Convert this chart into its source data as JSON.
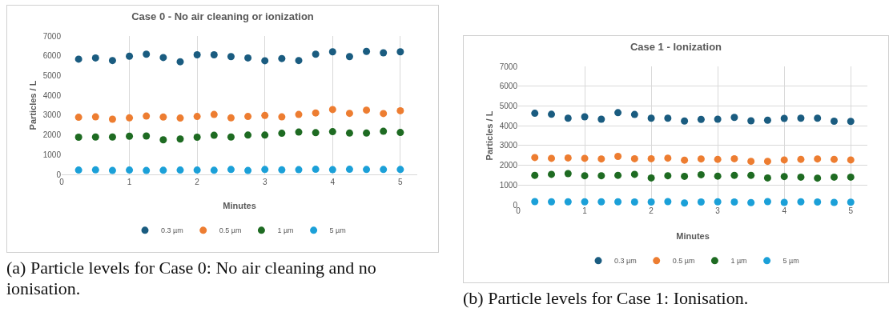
{
  "chart_data": [
    {
      "type": "scatter",
      "title": "Case 0 - No air cleaning or ionization",
      "xlabel": "Minutes",
      "ylabel": "Particles / L",
      "x": [
        0.25,
        0.5,
        0.75,
        1,
        1.25,
        1.5,
        1.75,
        2,
        2.25,
        2.5,
        2.75,
        3,
        3.25,
        3.5,
        3.75,
        4,
        4.25,
        4.5,
        4.75,
        5
      ],
      "xlim": [
        0,
        5.25
      ],
      "xticks": [
        0,
        1,
        2,
        3,
        4,
        5
      ],
      "ylim": [
        0,
        7000
      ],
      "yticks": [
        0,
        1000,
        2000,
        3000,
        4000,
        5000,
        6000,
        7000
      ],
      "grid": "x",
      "legend": "bottom",
      "marker": "circle",
      "series": [
        {
          "name": "0.3 µm",
          "color": "#1a5c80",
          "values": [
            5830,
            5890,
            5760,
            5980,
            6080,
            5910,
            5700,
            6050,
            6050,
            5960,
            5890,
            5750,
            5860,
            5760,
            6080,
            6200,
            5960,
            6220,
            6150,
            6200
          ]
        },
        {
          "name": "0.5 µm",
          "color": "#ed7d31",
          "values": [
            2890,
            2910,
            2790,
            2860,
            2950,
            2900,
            2850,
            2930,
            3030,
            2860,
            2930,
            2980,
            2910,
            3030,
            3110,
            3280,
            3090,
            3250,
            3080,
            3220
          ]
        },
        {
          "name": "1 µm",
          "color": "#1e6b22",
          "values": [
            1880,
            1890,
            1890,
            1930,
            1940,
            1750,
            1790,
            1880,
            1980,
            1890,
            1990,
            1990,
            2080,
            2140,
            2110,
            2160,
            2090,
            2090,
            2180,
            2120
          ]
        },
        {
          "name": "5 µm",
          "color": "#1ba0d8",
          "values": [
            220,
            230,
            200,
            220,
            200,
            210,
            220,
            220,
            210,
            250,
            200,
            250,
            230,
            240,
            260,
            240,
            260,
            250,
            250,
            250
          ]
        }
      ],
      "annotations": [
        "(a) Particle levels for Case 0: No air cleaning and no ionisation."
      ]
    },
    {
      "type": "scatter",
      "title": "Case 1 - Ionization",
      "xlabel": "Minutes",
      "ylabel": "Particles / L",
      "x": [
        0.25,
        0.5,
        0.75,
        1,
        1.25,
        1.5,
        1.75,
        2,
        2.25,
        2.5,
        2.75,
        3,
        3.25,
        3.5,
        3.75,
        4,
        4.25,
        4.5,
        4.75,
        5
      ],
      "xlim": [
        0,
        5.25
      ],
      "xticks": [
        0,
        1,
        2,
        3,
        4,
        5
      ],
      "ylim": [
        0,
        7000
      ],
      "yticks": [
        0,
        1000,
        2000,
        3000,
        4000,
        5000,
        6000,
        7000
      ],
      "grid": true,
      "legend": "bottom",
      "marker": "circle",
      "series": [
        {
          "name": "0.3 µm",
          "color": "#1a5c80",
          "values": [
            4630,
            4580,
            4380,
            4450,
            4330,
            4660,
            4570,
            4380,
            4380,
            4240,
            4320,
            4330,
            4420,
            4250,
            4280,
            4370,
            4380,
            4380,
            4230,
            4220
          ]
        },
        {
          "name": "0.5 µm",
          "color": "#ed7d31",
          "values": [
            2390,
            2350,
            2370,
            2350,
            2320,
            2450,
            2330,
            2330,
            2360,
            2260,
            2320,
            2300,
            2330,
            2200,
            2200,
            2270,
            2300,
            2320,
            2300,
            2270
          ]
        },
        {
          "name": "1 µm",
          "color": "#1e6b22",
          "values": [
            1490,
            1540,
            1580,
            1470,
            1470,
            1490,
            1540,
            1360,
            1470,
            1440,
            1520,
            1450,
            1490,
            1490,
            1360,
            1430,
            1400,
            1350,
            1400,
            1400
          ]
        },
        {
          "name": "5 µm",
          "color": "#1ba0d8",
          "values": [
            160,
            150,
            150,
            150,
            150,
            150,
            140,
            140,
            160,
            90,
            140,
            150,
            140,
            110,
            160,
            120,
            150,
            140,
            120,
            130
          ]
        }
      ],
      "annotations": [
        "(b) Particle levels for Case 1: Ionisation."
      ]
    }
  ]
}
